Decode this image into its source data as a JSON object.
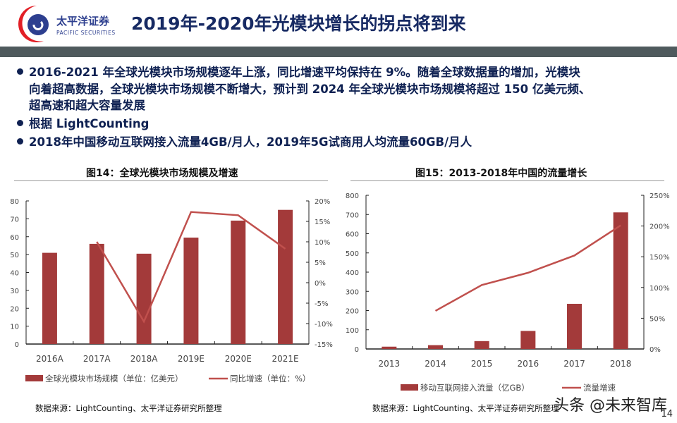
{
  "header": {
    "logo_cn": "太平洋证券",
    "logo_en": "PACIFIC SECURITIES",
    "title": "2019年-2020年光模块增长的拐点将到来"
  },
  "bullets": [
    {
      "lines": [
        "2016-2021 年全球光模块市场规模逐年上涨，同比增速平均保持在 9%。随着全球数据量的增加，光模块",
        "向着超高数据，全球光模块市场规模不断增大，预计到 2024 年全球光模块市场规模将超过 150 亿美元频、",
        "超高速和超大容量发展"
      ]
    },
    {
      "lines": [
        "根据 LightCounting"
      ]
    },
    {
      "lines": [
        "2018年中国移动互联网接入流量4GB/月人，2019年5G试商用人均流量60GB/月人"
      ]
    }
  ],
  "chart_data": [
    {
      "type": "bar+line",
      "title": "图14：全球光模块市场规模及增速",
      "categories": [
        "2016A",
        "2017A",
        "2018A",
        "2019E",
        "2020E",
        "2021E"
      ],
      "series": [
        {
          "name": "全球光模块市场规模（单位：亿美元）",
          "type": "bar",
          "axis": "left",
          "values": [
            51,
            56,
            50.5,
            59.5,
            69,
            75
          ]
        },
        {
          "name": "同比增速（单位：%）",
          "type": "line",
          "axis": "right",
          "values": [
            null,
            10,
            -9.5,
            17.3,
            16.5,
            8.3
          ]
        }
      ],
      "ylim": [
        0,
        80
      ],
      "yticks": [
        0,
        10,
        20,
        30,
        40,
        50,
        60,
        70,
        80
      ],
      "y2lim": [
        -15,
        20
      ],
      "y2ticks": [
        "-15%",
        "-10%",
        "-5%",
        "0%",
        "5%",
        "10%",
        "15%",
        "20%"
      ],
      "legend": "bottom",
      "grid": false,
      "source": "数据来源：LightCounting、太平洋证券研究所整理",
      "colors": {
        "bar": "#a33a3a",
        "line": "#c0504d"
      }
    },
    {
      "type": "bar+line",
      "title": "图15：2013-2018年中国的流量增长",
      "categories": [
        "2013",
        "2014",
        "2015",
        "2016",
        "2017",
        "2018"
      ],
      "series": [
        {
          "name": "移动互联网接入流量（亿GB）",
          "type": "bar",
          "axis": "left",
          "values": [
            12,
            20,
            41,
            94,
            235,
            711
          ]
        },
        {
          "name": "流量增速",
          "type": "line",
          "axis": "right",
          "values": [
            null,
            62,
            104,
            124,
            152,
            201
          ]
        }
      ],
      "ylim": [
        0,
        800
      ],
      "yticks": [
        0,
        100,
        200,
        300,
        400,
        500,
        600,
        700,
        800
      ],
      "y2lim": [
        0,
        250
      ],
      "y2ticks": [
        "0%",
        "50%",
        "100%",
        "150%",
        "200%",
        "250%"
      ],
      "legend": "bottom",
      "grid": false,
      "source": "数据来源：LightCounting、太平洋证券研究所整理",
      "colors": {
        "bar": "#a33a3a",
        "line": "#c0504d"
      }
    }
  ],
  "watermark": "头条 @未来智库",
  "page_number": "14"
}
